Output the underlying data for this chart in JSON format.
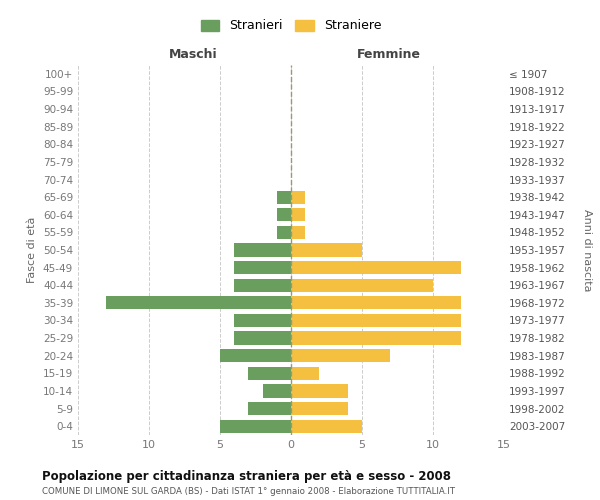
{
  "age_groups": [
    "0-4",
    "5-9",
    "10-14",
    "15-19",
    "20-24",
    "25-29",
    "30-34",
    "35-39",
    "40-44",
    "45-49",
    "50-54",
    "55-59",
    "60-64",
    "65-69",
    "70-74",
    "75-79",
    "80-84",
    "85-89",
    "90-94",
    "95-99",
    "100+"
  ],
  "birth_years": [
    "2003-2007",
    "1998-2002",
    "1993-1997",
    "1988-1992",
    "1983-1987",
    "1978-1982",
    "1973-1977",
    "1968-1972",
    "1963-1967",
    "1958-1962",
    "1953-1957",
    "1948-1952",
    "1943-1947",
    "1938-1942",
    "1933-1937",
    "1928-1932",
    "1923-1927",
    "1918-1922",
    "1913-1917",
    "1908-1912",
    "≤ 1907"
  ],
  "males": [
    5,
    3,
    2,
    3,
    5,
    4,
    4,
    13,
    4,
    4,
    4,
    1,
    1,
    1,
    0,
    0,
    0,
    0,
    0,
    0,
    0
  ],
  "females": [
    5,
    4,
    4,
    2,
    7,
    12,
    12,
    12,
    10,
    12,
    5,
    1,
    1,
    1,
    0,
    0,
    0,
    0,
    0,
    0,
    0
  ],
  "male_color": "#6a9e5f",
  "female_color": "#f5c040",
  "background_color": "#ffffff",
  "grid_color": "#cccccc",
  "title": "Popolazione per cittadinanza straniera per età e sesso - 2008",
  "subtitle": "COMUNE DI LIMONE SUL GARDA (BS) - Dati ISTAT 1° gennaio 2008 - Elaborazione TUTTITALIA.IT",
  "xlabel_left": "Maschi",
  "xlabel_right": "Femmine",
  "ylabel_left": "Fasce di età",
  "ylabel_right": "Anni di nascita",
  "legend_males": "Stranieri",
  "legend_females": "Straniere",
  "xlim": 15
}
